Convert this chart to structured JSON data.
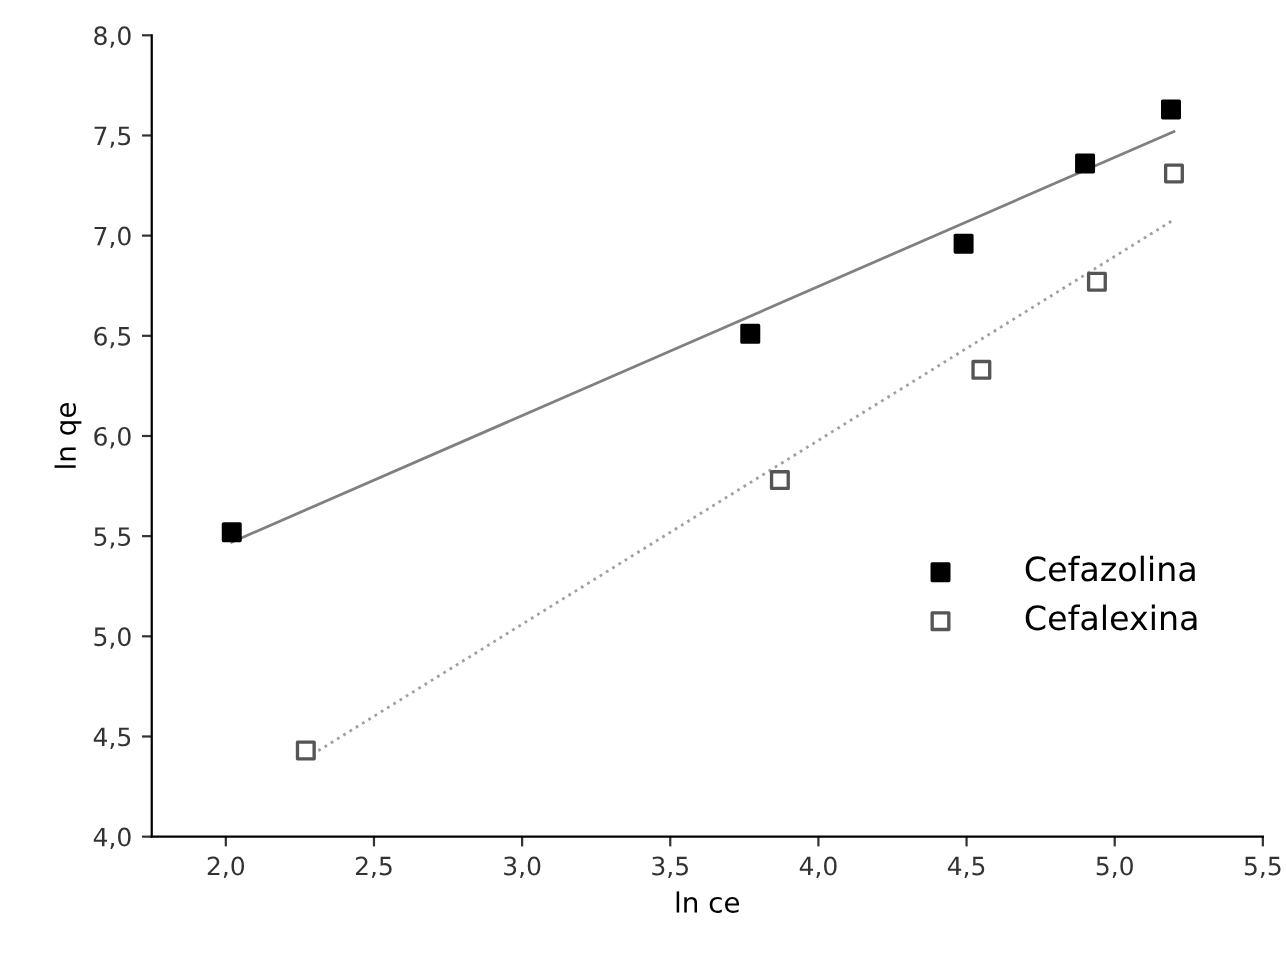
{
  "chart_data": {
    "type": "scatter",
    "xlabel": "ln ce",
    "ylabel": "ln qe",
    "xlim": [
      1.75,
      5.5
    ],
    "ylim": [
      4.0,
      8.0
    ],
    "xticks": [
      {
        "value": 2.0,
        "label": "2,0"
      },
      {
        "value": 2.5,
        "label": "2,5"
      },
      {
        "value": 3.0,
        "label": "3,0"
      },
      {
        "value": 3.5,
        "label": "3,5"
      },
      {
        "value": 4.0,
        "label": "4,0"
      },
      {
        "value": 4.5,
        "label": "4,5"
      },
      {
        "value": 5.0,
        "label": "5,0"
      },
      {
        "value": 5.5,
        "label": "5,5"
      }
    ],
    "yticks": [
      {
        "value": 4.0,
        "label": "4,0"
      },
      {
        "value": 4.5,
        "label": "4,5"
      },
      {
        "value": 5.0,
        "label": "5,0"
      },
      {
        "value": 5.5,
        "label": "5,5"
      },
      {
        "value": 6.0,
        "label": "6,0"
      },
      {
        "value": 6.5,
        "label": "6,5"
      },
      {
        "value": 7.0,
        "label": "7,0"
      },
      {
        "value": 7.5,
        "label": "7,5"
      },
      {
        "value": 8.0,
        "label": "8,0"
      }
    ],
    "grid": false,
    "legend": "right",
    "series": [
      {
        "name": "Cefazolina",
        "marker": "square",
        "color": "#000000",
        "x": [
          2.02,
          3.77,
          4.49,
          4.9,
          5.19
        ],
        "values": [
          5.52,
          6.51,
          6.96,
          7.36,
          7.63
        ]
      },
      {
        "name": "Cefalexina",
        "marker": "square",
        "color": "#ffffff",
        "x": [
          2.27,
          3.87,
          4.55,
          4.94,
          5.2
        ],
        "values": [
          4.43,
          5.78,
          6.33,
          6.77,
          7.31
        ]
      },
      {
        "type": "line",
        "color": "#808080",
        "x": [
          2.02,
          5.2
        ],
        "values": [
          5.47,
          7.52
        ]
      },
      {
        "type": "line",
        "color": "#a0a0a0",
        "line_style": "dotted",
        "x": [
          2.27,
          5.2
        ],
        "values": [
          4.39,
          7.08
        ]
      }
    ]
  }
}
